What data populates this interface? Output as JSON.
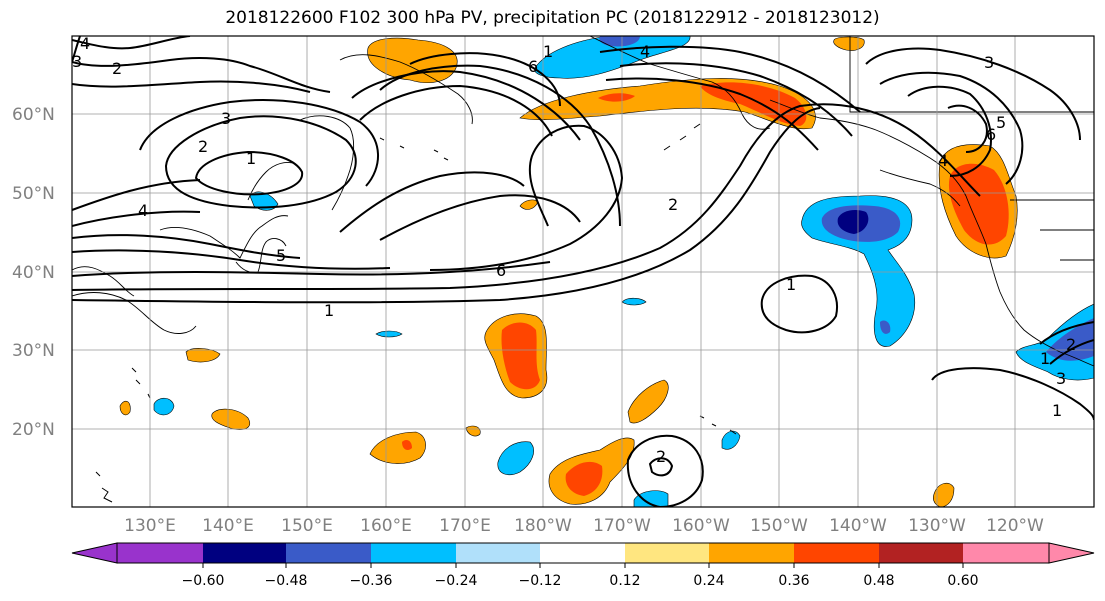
{
  "title": "2018122600 F102 300 hPa PV, precipitation PC (2018122912 - 2018123012)",
  "lat_labels": [
    "60°N",
    "50°N",
    "40°N",
    "30°N",
    "20°N"
  ],
  "lon_labels": [
    "130°E",
    "140°E",
    "150°E",
    "160°E",
    "170°E",
    "180°W",
    "170°W",
    "160°W",
    "150°W",
    "140°W",
    "130°W",
    "120°W"
  ],
  "pv_contour_labels": [
    "4",
    "3",
    "2",
    "3",
    "2",
    "1",
    "4",
    "5",
    "1",
    "6",
    "2",
    "1",
    "4",
    "6",
    "3",
    "6",
    "5",
    "4",
    "1",
    "1",
    "1",
    "2",
    "3",
    "2"
  ],
  "colorbar": {
    "ticks": [
      "−0.60",
      "−0.48",
      "−0.36",
      "−0.24",
      "−0.12",
      "0.12",
      "0.24",
      "0.36",
      "0.48",
      "0.60"
    ],
    "colors": [
      "#9933cc",
      "#000080",
      "#3a5bc8",
      "#00bfff",
      "#b0e0fa",
      "#ffffff",
      "#ffe680",
      "#ffa500",
      "#ff4500",
      "#b22222",
      "#ff88aa"
    ]
  }
}
